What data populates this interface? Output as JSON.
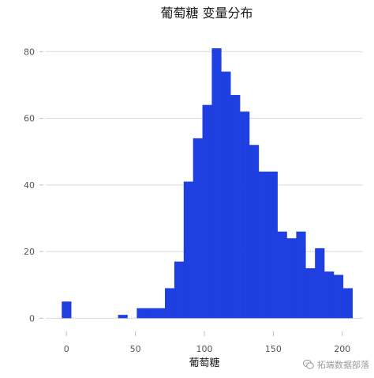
{
  "chart_data": {
    "type": "bar",
    "subtype": "histogram",
    "title": "葡萄糖 变量分布",
    "xlabel": "葡萄糖",
    "ylabel": "",
    "bar_color": "#1f3fe0",
    "bin_width": 6.8,
    "bins": [
      {
        "start": -3.4,
        "end": 3.4,
        "count": 5
      },
      {
        "start": 37.4,
        "end": 44.2,
        "count": 1
      },
      {
        "start": 51.0,
        "end": 57.8,
        "count": 3
      },
      {
        "start": 57.8,
        "end": 64.6,
        "count": 3
      },
      {
        "start": 64.6,
        "end": 71.4,
        "count": 3
      },
      {
        "start": 71.4,
        "end": 78.2,
        "count": 9
      },
      {
        "start": 78.2,
        "end": 85.0,
        "count": 17
      },
      {
        "start": 85.0,
        "end": 91.8,
        "count": 41
      },
      {
        "start": 91.8,
        "end": 98.6,
        "count": 54
      },
      {
        "start": 98.6,
        "end": 105.4,
        "count": 64
      },
      {
        "start": 105.4,
        "end": 112.2,
        "count": 81
      },
      {
        "start": 112.2,
        "end": 119.0,
        "count": 74
      },
      {
        "start": 119.0,
        "end": 125.8,
        "count": 67
      },
      {
        "start": 125.8,
        "end": 132.6,
        "count": 62
      },
      {
        "start": 132.6,
        "end": 139.4,
        "count": 52
      },
      {
        "start": 139.4,
        "end": 146.2,
        "count": 44
      },
      {
        "start": 146.2,
        "end": 153.0,
        "count": 44
      },
      {
        "start": 153.0,
        "end": 159.8,
        "count": 26
      },
      {
        "start": 159.8,
        "end": 166.6,
        "count": 24
      },
      {
        "start": 166.6,
        "end": 173.4,
        "count": 26
      },
      {
        "start": 173.4,
        "end": 180.2,
        "count": 15
      },
      {
        "start": 180.2,
        "end": 187.0,
        "count": 21
      },
      {
        "start": 187.0,
        "end": 193.8,
        "count": 14
      },
      {
        "start": 193.8,
        "end": 200.6,
        "count": 13
      },
      {
        "start": 200.6,
        "end": 207.4,
        "count": 9
      }
    ],
    "xlim": [
      -15,
      215
    ],
    "ylim": [
      -3,
      86
    ],
    "x_ticks": [
      0,
      50,
      100,
      150,
      200
    ],
    "y_ticks": [
      0,
      20,
      40,
      60,
      80
    ],
    "grid": "horizontal",
    "legend": "none"
  },
  "watermark": {
    "text": "拓端数据部落",
    "icon": "wechat-bubble-icon"
  }
}
